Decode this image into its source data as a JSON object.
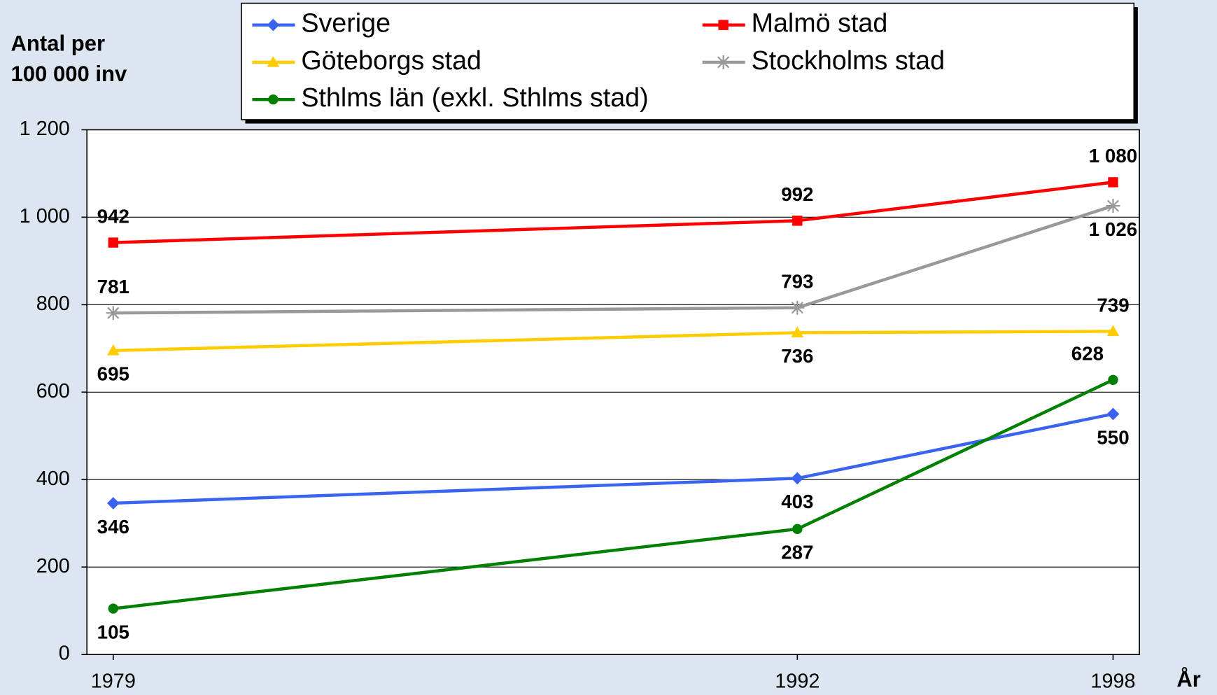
{
  "chart_data": {
    "type": "line",
    "ylabel": [
      "Antal per",
      "100 000 inv"
    ],
    "xlabel": "År",
    "x": [
      1979,
      1992,
      1998
    ],
    "xlim": [
      1978.5,
      1998.5
    ],
    "xticks": [
      1979,
      1992,
      1998
    ],
    "ylim": [
      0,
      1200
    ],
    "yticks": [
      0,
      200,
      400,
      600,
      800,
      {
        "value": 1000,
        "label": "1 000"
      },
      {
        "value": 1200,
        "label": "1 200"
      }
    ],
    "grid": true,
    "legend": "top",
    "series": [
      {
        "name": "Sverige",
        "color": "#3a64f0",
        "marker": "diamond",
        "values": [
          346,
          403,
          550
        ]
      },
      {
        "name": "Malmö stad",
        "color": "#ff0000",
        "marker": "square",
        "values": [
          942,
          992,
          1080
        ],
        "value_labels": [
          "942",
          "992",
          "1 080"
        ]
      },
      {
        "name": "Göteborgs stad",
        "color": "#ffcc00",
        "marker": "triangle",
        "values": [
          695,
          736,
          739
        ]
      },
      {
        "name": "Stockholms stad",
        "color": "#999999",
        "marker": "star",
        "values": [
          781,
          793,
          1026
        ],
        "value_labels": [
          "781",
          "793",
          "1 026"
        ]
      },
      {
        "name": "Sthlms län (exkl. Sthlms stad)",
        "color": "#008000",
        "marker": "circle",
        "values": [
          105,
          287,
          628
        ]
      }
    ]
  }
}
